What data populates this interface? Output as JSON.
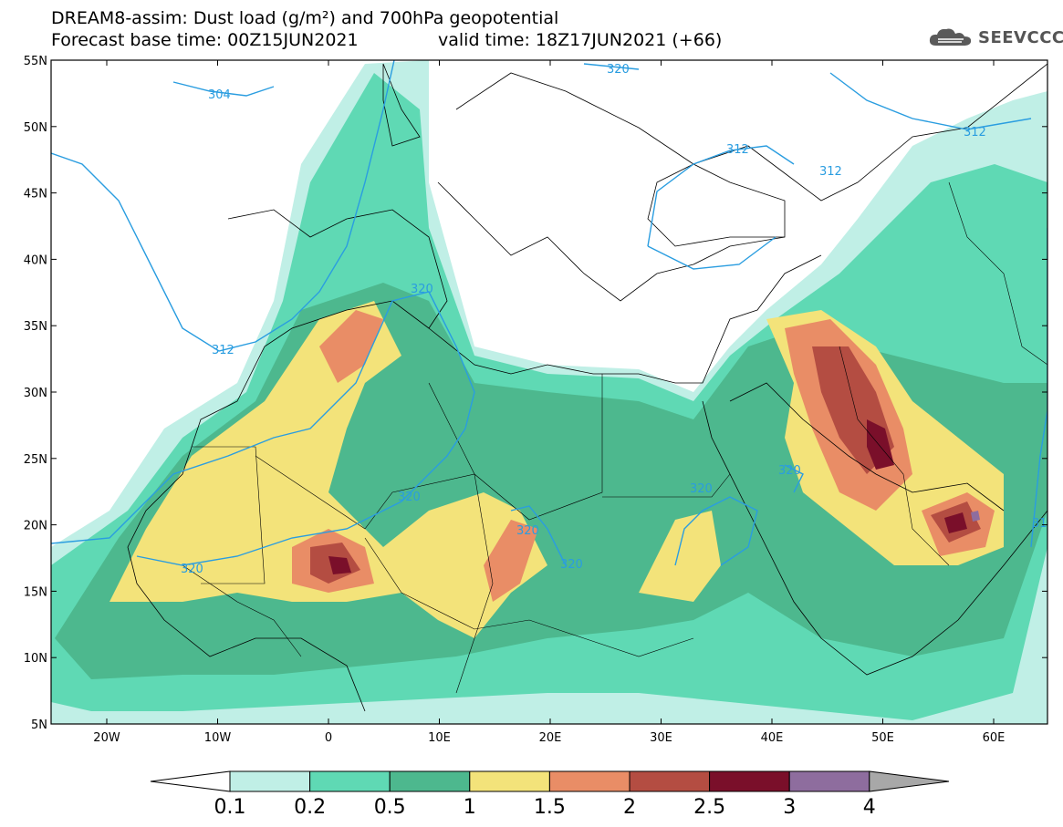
{
  "header": {
    "title_line1": "DREAM8-assim: Dust load (g/m²) and 700hPa geopotential",
    "title_line2_left": "Forecast base time: 00Z15JUN2021",
    "title_line2_right": "valid time: 18Z17JUN2021 (+66)"
  },
  "logo": {
    "text": "SEEVCCC",
    "icon": "cloud-icon"
  },
  "axes": {
    "lat_labels": [
      "55N",
      "50N",
      "45N",
      "40N",
      "35N",
      "30N",
      "25N",
      "20N",
      "15N",
      "10N",
      "5N"
    ],
    "lon_labels": [
      "20W",
      "10W",
      "0",
      "10E",
      "20E",
      "30E",
      "40E",
      "50E",
      "60E"
    ]
  },
  "contours": {
    "labels": [
      "304",
      "320",
      "312",
      "312",
      "312",
      "320",
      "320",
      "320",
      "320",
      "320",
      "320",
      "320",
      "312",
      "31"
    ]
  },
  "colorbar": {
    "labels": [
      "0.1",
      "0.2",
      "0.5",
      "1",
      "1.5",
      "2",
      "2.5",
      "3",
      "4"
    ],
    "colors": [
      "#c0efe6",
      "#5fd9b4",
      "#4db88e",
      "#f3e37a",
      "#e98d66",
      "#b44d42",
      "#7a0f2a",
      "#8e6d9e",
      "#a8a8a8"
    ],
    "ocean_color": "#ffffff",
    "contour_color": "#2a9de0"
  }
}
